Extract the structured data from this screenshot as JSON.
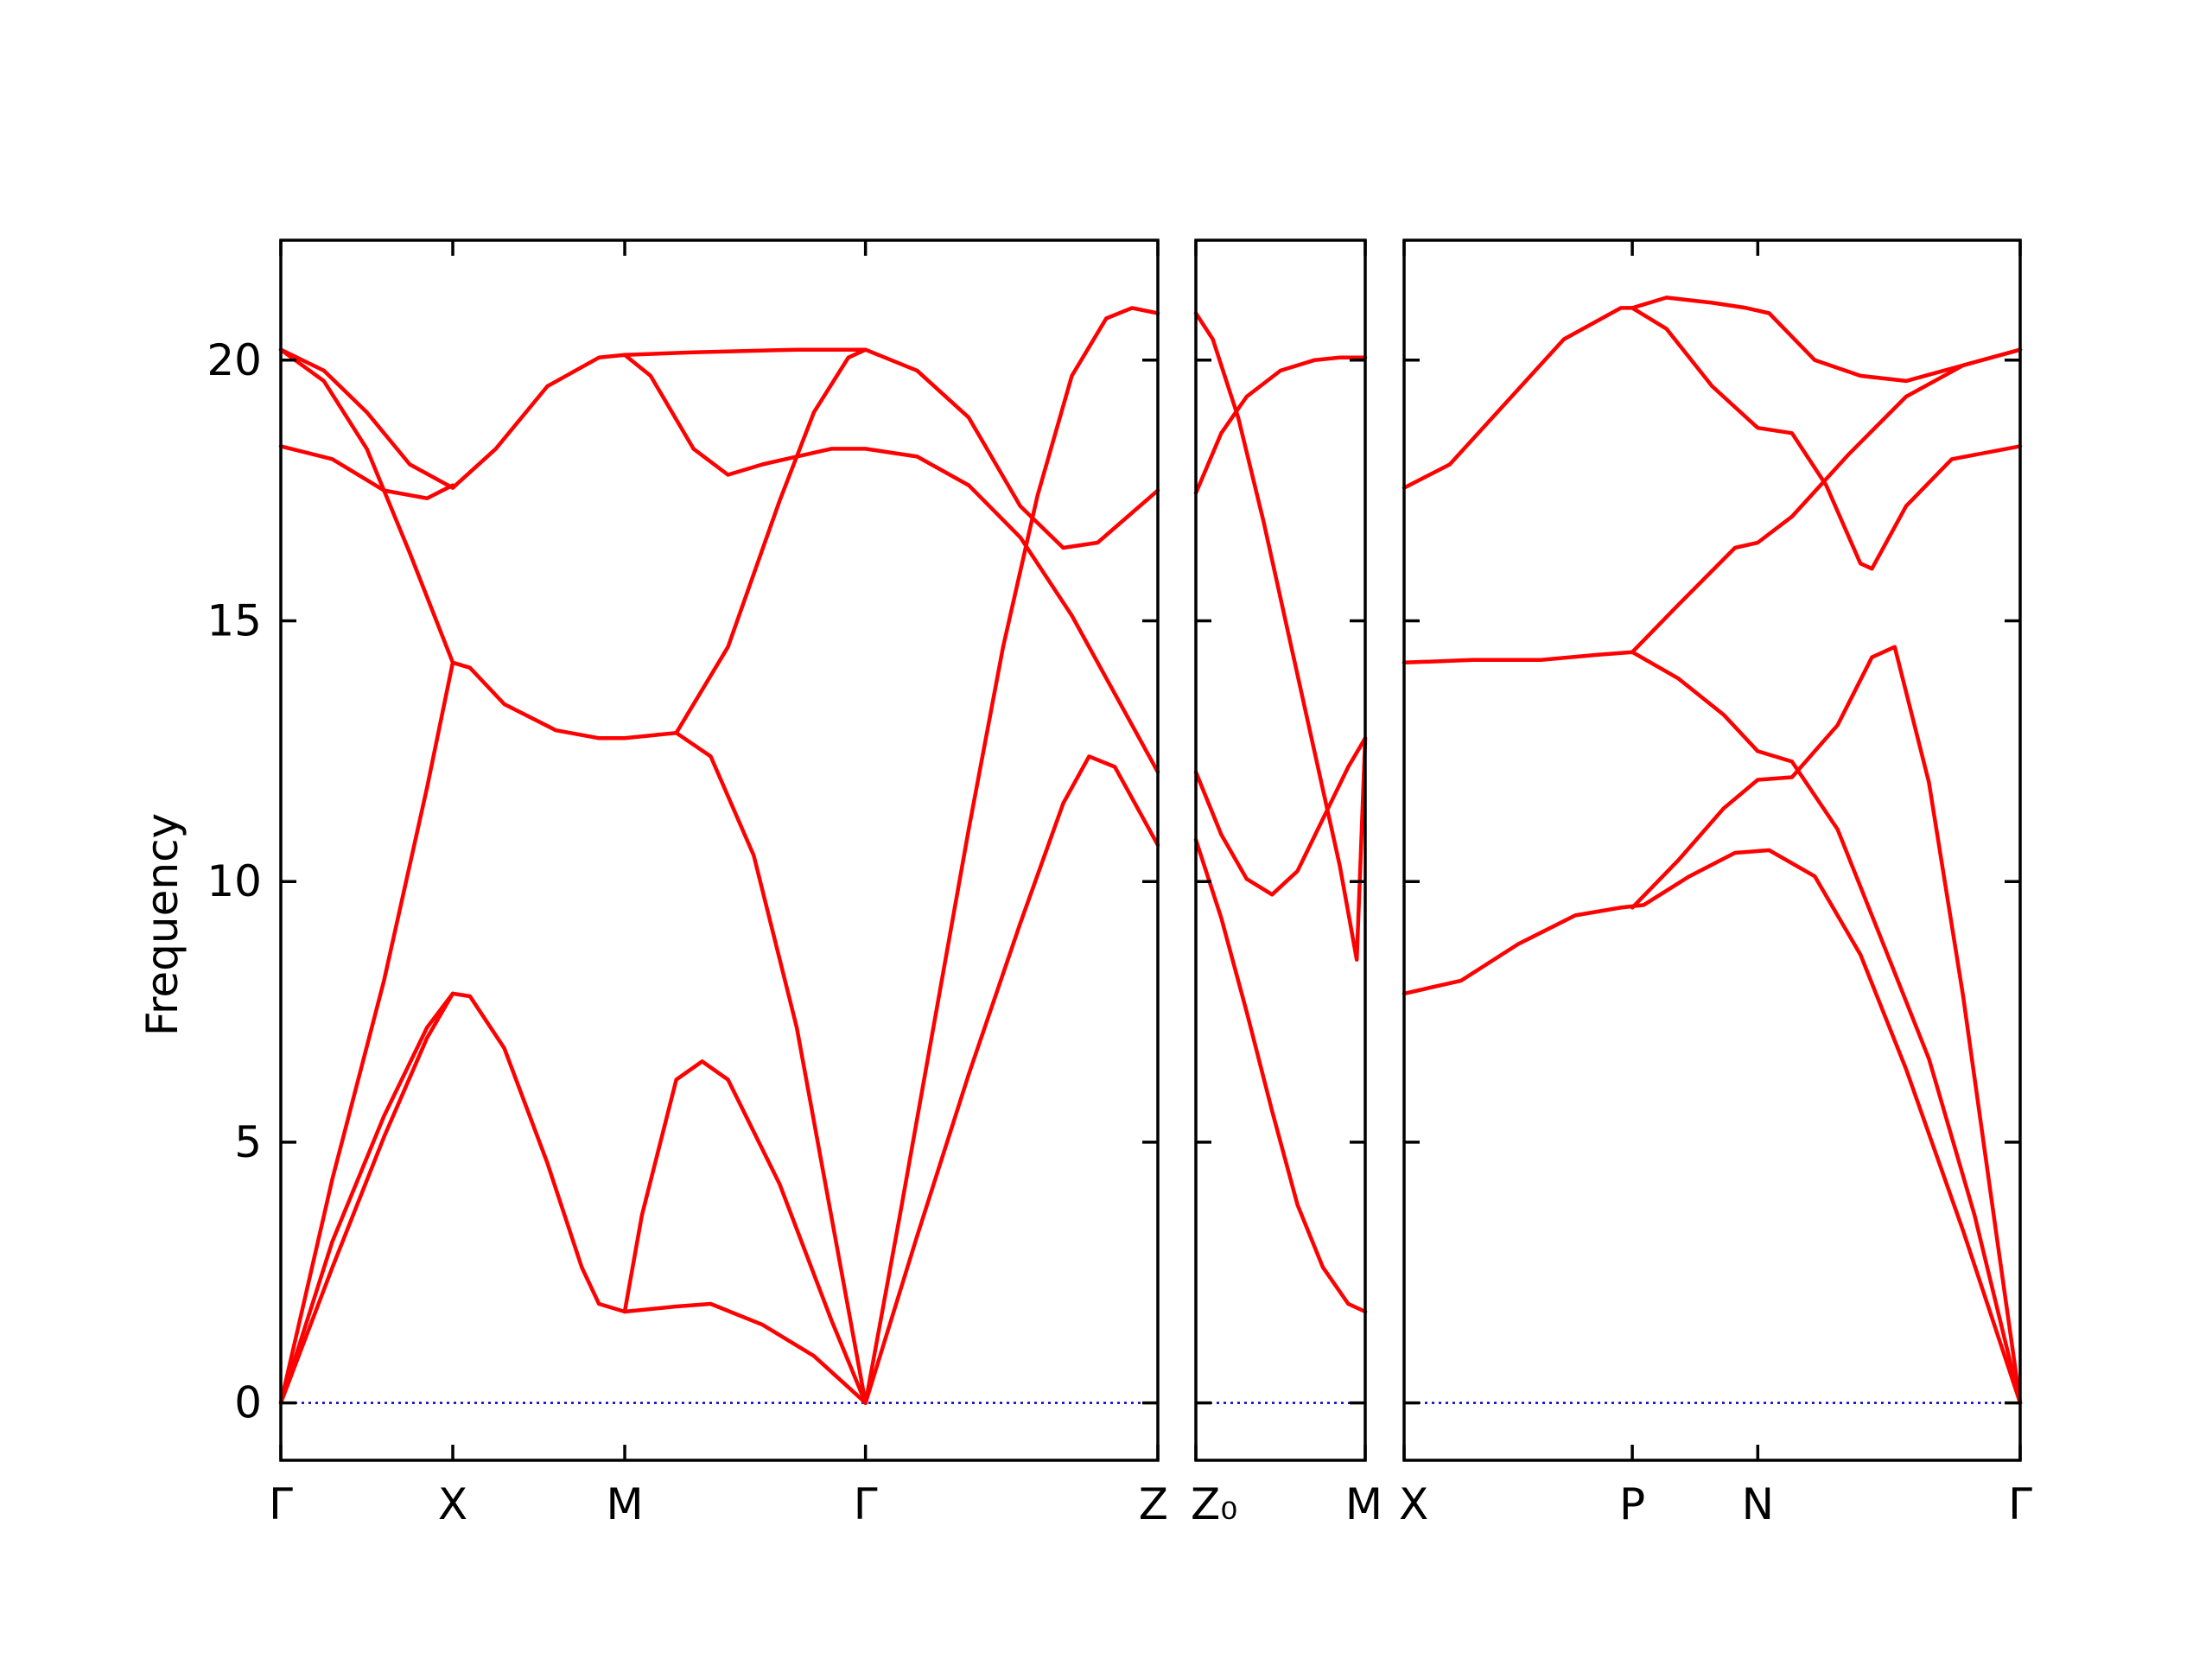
{
  "chart_data": {
    "type": "line",
    "ylabel": "Frequency",
    "ylim": [
      -1.1,
      22.3
    ],
    "yticks": [
      0,
      5,
      10,
      15,
      20
    ],
    "colors": {
      "bands": "#ff0000",
      "zero_line": "#0000cc",
      "axes": "#000000"
    },
    "panels": [
      {
        "name": "Γ-X-M-Γ-Z",
        "xlim": [
          0,
          5.1
        ],
        "ticks": [
          {
            "x": 0,
            "label": "Γ"
          },
          {
            "x": 1.0,
            "label": "X"
          },
          {
            "x": 2.0,
            "label": "M"
          },
          {
            "x": 3.4,
            "label": "Γ"
          },
          {
            "x": 5.1,
            "label": "Z"
          }
        ],
        "series": [
          {
            "points": [
              [
                0,
                0
              ],
              [
                0.3,
                2.6
              ],
              [
                0.6,
                5.1
              ],
              [
                0.85,
                7.0
              ],
              [
                1.0,
                7.85
              ],
              [
                1.1,
                7.8
              ],
              [
                1.3,
                6.8
              ],
              [
                1.55,
                4.6
              ],
              [
                1.75,
                2.6
              ],
              [
                1.85,
                1.9
              ],
              [
                2.0,
                1.75
              ],
              [
                2.3,
                1.85
              ],
              [
                2.5,
                1.9
              ],
              [
                2.8,
                1.5
              ],
              [
                3.1,
                0.9
              ],
              [
                3.4,
                0
              ]
            ]
          },
          {
            "points": [
              [
                0,
                0
              ],
              [
                0.3,
                3.1
              ],
              [
                0.6,
                5.5
              ],
              [
                0.85,
                7.2
              ],
              [
                1.0,
                7.85
              ]
            ]
          },
          {
            "points": [
              [
                0,
                0
              ],
              [
                0.3,
                4.3
              ],
              [
                0.6,
                8.1
              ],
              [
                0.85,
                11.8
              ],
              [
                1.0,
                14.2
              ],
              [
                1.1,
                14.1
              ],
              [
                1.3,
                13.4
              ],
              [
                1.6,
                12.9
              ],
              [
                1.85,
                12.75
              ],
              [
                2.0,
                12.75
              ],
              [
                2.15,
                12.8
              ],
              [
                2.3,
                12.85
              ],
              [
                2.5,
                12.4
              ],
              [
                2.75,
                10.5
              ],
              [
                3.0,
                7.2
              ],
              [
                3.2,
                3.6
              ],
              [
                3.4,
                0
              ]
            ]
          },
          {
            "points": [
              [
                2.0,
                1.75
              ],
              [
                2.1,
                3.6
              ],
              [
                2.3,
                6.2
              ],
              [
                2.45,
                6.55
              ],
              [
                2.6,
                6.2
              ],
              [
                2.9,
                4.2
              ],
              [
                3.2,
                1.6
              ],
              [
                3.4,
                0
              ]
            ]
          },
          {
            "points": [
              [
                0,
                20.2
              ],
              [
                0.25,
                19.6
              ],
              [
                0.5,
                18.3
              ],
              [
                0.75,
                16.3
              ],
              [
                1.0,
                14.2
              ]
            ]
          },
          {
            "points": [
              [
                0,
                20.2
              ],
              [
                0.25,
                19.8
              ],
              [
                0.5,
                19.0
              ],
              [
                0.75,
                18.0
              ],
              [
                1.0,
                17.55
              ],
              [
                1.25,
                18.3
              ],
              [
                1.55,
                19.5
              ],
              [
                1.85,
                20.05
              ],
              [
                2.0,
                20.1
              ],
              [
                2.15,
                19.7
              ],
              [
                2.4,
                18.3
              ],
              [
                2.6,
                17.8
              ],
              [
                2.8,
                18.0
              ],
              [
                3.0,
                18.15
              ],
              [
                3.2,
                18.3
              ],
              [
                3.4,
                18.3
              ],
              [
                3.7,
                18.15
              ],
              [
                4.0,
                17.6
              ],
              [
                4.3,
                16.6
              ],
              [
                4.6,
                15.1
              ],
              [
                4.9,
                13.3
              ],
              [
                5.1,
                12.1
              ]
            ]
          },
          {
            "points": [
              [
                0,
                18.35
              ],
              [
                0.3,
                18.1
              ],
              [
                0.6,
                17.5
              ],
              [
                0.85,
                17.35
              ],
              [
                1.0,
                17.6
              ]
            ]
          },
          {
            "points": [
              [
                2.0,
                20.1
              ],
              [
                2.4,
                20.15
              ],
              [
                3.0,
                20.2
              ],
              [
                3.4,
                20.2
              ],
              [
                3.7,
                19.8
              ],
              [
                4.0,
                18.9
              ],
              [
                4.3,
                17.2
              ],
              [
                4.55,
                16.4
              ],
              [
                4.75,
                16.5
              ],
              [
                5.1,
                17.5
              ]
            ]
          },
          {
            "points": [
              [
                2.3,
                12.85
              ],
              [
                2.6,
                14.5
              ],
              [
                2.9,
                17.3
              ],
              [
                3.1,
                19.0
              ],
              [
                3.3,
                20.05
              ],
              [
                3.4,
                20.2
              ]
            ]
          },
          {
            "points": [
              [
                3.4,
                0
              ],
              [
                3.7,
                3.2
              ],
              [
                4.0,
                6.3
              ],
              [
                4.3,
                9.2
              ],
              [
                4.55,
                11.5
              ],
              [
                4.7,
                12.4
              ],
              [
                4.85,
                12.2
              ],
              [
                5.0,
                11.3
              ],
              [
                5.1,
                10.7
              ]
            ]
          },
          {
            "points": [
              [
                3.4,
                0
              ],
              [
                3.6,
                3.6
              ],
              [
                3.8,
                7.3
              ],
              [
                4.0,
                11.0
              ],
              [
                4.2,
                14.5
              ],
              [
                4.4,
                17.4
              ],
              [
                4.6,
                19.7
              ],
              [
                4.8,
                20.8
              ],
              [
                4.95,
                21.0
              ],
              [
                5.1,
                20.9
              ]
            ]
          }
        ]
      },
      {
        "name": "Z0-M",
        "xlim": [
          0,
          1.0
        ],
        "ticks": [
          {
            "x": 0,
            "label": "Z₀"
          },
          {
            "x": 1.0,
            "label": "M"
          }
        ],
        "series": [
          {
            "points": [
              [
                0,
                20.9
              ],
              [
                0.1,
                20.4
              ],
              [
                0.25,
                18.9
              ],
              [
                0.4,
                16.9
              ],
              [
                0.55,
                14.7
              ],
              [
                0.7,
                12.5
              ],
              [
                0.85,
                10.3
              ],
              [
                0.95,
                8.5
              ],
              [
                1.0,
                12.75
              ]
            ]
          },
          {
            "points": [
              [
                0,
                17.45
              ],
              [
                0.15,
                18.6
              ],
              [
                0.3,
                19.3
              ],
              [
                0.5,
                19.8
              ],
              [
                0.7,
                20.0
              ],
              [
                0.85,
                20.05
              ],
              [
                1.0,
                20.05
              ]
            ]
          },
          {
            "points": [
              [
                0,
                12.1
              ],
              [
                0.15,
                10.9
              ],
              [
                0.3,
                10.05
              ],
              [
                0.45,
                9.75
              ],
              [
                0.6,
                10.2
              ],
              [
                0.75,
                11.2
              ],
              [
                0.9,
                12.2
              ],
              [
                1.0,
                12.75
              ]
            ]
          },
          {
            "points": [
              [
                0,
                10.8
              ],
              [
                0.15,
                9.3
              ],
              [
                0.3,
                7.5
              ],
              [
                0.45,
                5.6
              ],
              [
                0.6,
                3.8
              ],
              [
                0.75,
                2.6
              ],
              [
                0.9,
                1.9
              ],
              [
                1.0,
                1.75
              ]
            ]
          }
        ]
      },
      {
        "name": "X-P-N-Γ",
        "xlim": [
          0,
          2.7
        ],
        "ticks": [
          {
            "x": 0,
            "label": "X"
          },
          {
            "x": 1.0,
            "label": "P"
          },
          {
            "x": 1.55,
            "label": "N"
          },
          {
            "x": 2.7,
            "label": "Γ"
          }
        ],
        "series": [
          {
            "points": [
              [
                0,
                7.85
              ],
              [
                0.25,
                8.1
              ],
              [
                0.5,
                8.8
              ],
              [
                0.75,
                9.35
              ],
              [
                0.95,
                9.5
              ],
              [
                1.05,
                9.55
              ],
              [
                1.25,
                10.1
              ],
              [
                1.45,
                10.55
              ],
              [
                1.6,
                10.6
              ],
              [
                1.8,
                10.1
              ],
              [
                2.0,
                8.6
              ],
              [
                2.2,
                6.4
              ],
              [
                2.45,
                3.3
              ],
              [
                2.7,
                0
              ]
            ]
          },
          {
            "points": [
              [
                1.0,
                9.5
              ],
              [
                1.2,
                10.4
              ],
              [
                1.4,
                11.4
              ],
              [
                1.55,
                11.95
              ],
              [
                1.7,
                12.0
              ],
              [
                1.9,
                13.0
              ],
              [
                2.05,
                14.3
              ],
              [
                2.15,
                14.5
              ],
              [
                2.3,
                11.9
              ],
              [
                2.45,
                7.8
              ],
              [
                2.6,
                3.1
              ],
              [
                2.7,
                0
              ]
            ]
          },
          {
            "points": [
              [
                0,
                14.2
              ],
              [
                0.3,
                14.25
              ],
              [
                0.6,
                14.25
              ],
              [
                0.85,
                14.35
              ],
              [
                1.0,
                14.4
              ],
              [
                1.2,
                13.9
              ],
              [
                1.4,
                13.2
              ],
              [
                1.55,
                12.5
              ],
              [
                1.7,
                12.3
              ],
              [
                1.9,
                11.0
              ],
              [
                2.1,
                8.8
              ],
              [
                2.3,
                6.6
              ],
              [
                2.5,
                3.6
              ],
              [
                2.7,
                0
              ]
            ]
          },
          {
            "points": [
              [
                1.0,
                14.4
              ],
              [
                1.2,
                15.3
              ],
              [
                1.45,
                16.4
              ],
              [
                1.55,
                16.5
              ],
              [
                1.7,
                17.0
              ],
              [
                1.95,
                18.2
              ],
              [
                2.2,
                19.3
              ],
              [
                2.45,
                19.9
              ],
              [
                2.7,
                20.2
              ]
            ]
          },
          {
            "points": [
              [
                0,
                17.55
              ],
              [
                0.2,
                18.0
              ],
              [
                0.45,
                19.2
              ],
              [
                0.7,
                20.4
              ],
              [
                0.95,
                21.0
              ],
              [
                1.0,
                21.0
              ],
              [
                1.15,
                20.6
              ],
              [
                1.35,
                19.5
              ],
              [
                1.55,
                18.7
              ],
              [
                1.7,
                18.6
              ],
              [
                1.85,
                17.6
              ],
              [
                2.0,
                16.1
              ],
              [
                2.05,
                16.0
              ],
              [
                2.2,
                17.2
              ],
              [
                2.4,
                18.1
              ],
              [
                2.7,
                18.35
              ]
            ]
          },
          {
            "points": [
              [
                1.0,
                21.0
              ],
              [
                1.15,
                21.2
              ],
              [
                1.35,
                21.1
              ],
              [
                1.5,
                21.0
              ],
              [
                1.6,
                20.9
              ],
              [
                1.8,
                20.0
              ],
              [
                2.0,
                19.7
              ],
              [
                2.2,
                19.6
              ],
              [
                2.45,
                19.9
              ],
              [
                2.7,
                20.2
              ]
            ]
          }
        ]
      }
    ]
  }
}
